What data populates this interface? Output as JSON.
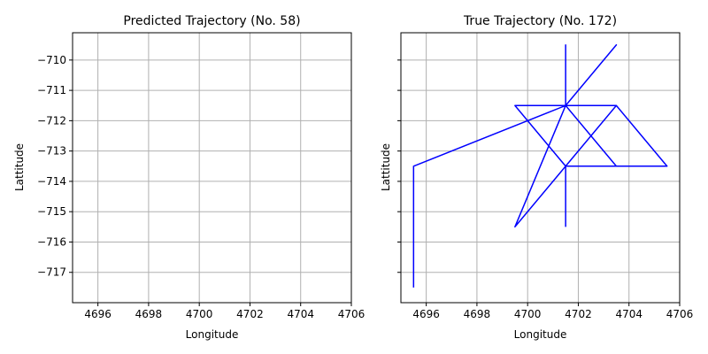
{
  "chart_data": [
    {
      "type": "line",
      "title": "Predicted Trajectory (No. 58)",
      "xlabel": "Longitude",
      "ylabel": "Lattitude",
      "xlim": [
        4695,
        4706
      ],
      "ylim": [
        -718,
        -709.1
      ],
      "xticks": [
        4696,
        4698,
        4700,
        4702,
        4704,
        4706
      ],
      "yticks": [
        -710,
        -711,
        -712,
        -713,
        -714,
        -715,
        -716,
        -717
      ],
      "show_ytick_labels": true,
      "grid": true,
      "color": "#0000ff",
      "series": [
        {
          "x": [],
          "y": []
        }
      ]
    },
    {
      "type": "line",
      "title": "True Trajectory (No. 172)",
      "xlabel": "Longitude",
      "ylabel": "Lattitude",
      "xlim": [
        4695,
        4706
      ],
      "ylim": [
        -718,
        -709.1
      ],
      "xticks": [
        4696,
        4698,
        4700,
        4702,
        4704,
        4706
      ],
      "yticks": [
        -710,
        -711,
        -712,
        -713,
        -714,
        -715,
        -716,
        -717
      ],
      "show_ytick_labels": false,
      "grid": true,
      "color": "#0000ff",
      "series": [
        {
          "x": [
            4695.5,
            4695.5,
            4701.5,
            4703.5,
            4701.5,
            4701.5,
            4701.5,
            4699.5,
            4701.5,
            4703.5,
            4701.5,
            4703.5,
            4701.5,
            4699.5,
            4701.5,
            4703.5,
            4705.5,
            4701.5,
            4701.5
          ],
          "y": [
            -717.5,
            -713.5,
            -711.5,
            -709.5,
            -711.5,
            -709.5,
            -711.5,
            -711.5,
            -713.5,
            -711.5,
            -711.5,
            -713.5,
            -713.5,
            -715.5,
            -711.5,
            -711.5,
            -713.5,
            -713.5,
            -715.5
          ]
        }
      ]
    }
  ]
}
